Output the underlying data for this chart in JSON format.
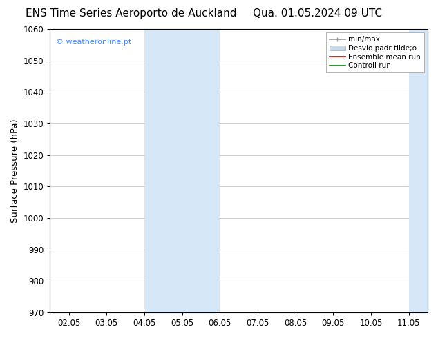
{
  "title_left": "ENS Time Series Aeroporto de Auckland",
  "title_right": "Qua. 01.05.2024 09 UTC",
  "ylabel": "Surface Pressure (hPa)",
  "ylim": [
    970,
    1060
  ],
  "yticks": [
    970,
    980,
    990,
    1000,
    1010,
    1020,
    1030,
    1040,
    1050,
    1060
  ],
  "xtick_labels": [
    "02.05",
    "03.05",
    "04.05",
    "05.05",
    "06.05",
    "07.05",
    "08.05",
    "09.05",
    "10.05",
    "11.05"
  ],
  "watermark": "© weatheronline.pt",
  "watermark_color": "#4488ff",
  "bg_color": "#ffffff",
  "plot_bg_color": "#ffffff",
  "shaded_color": "#d6e8f7",
  "legend_items": [
    {
      "label": "min/max"
    },
    {
      "label": "Desvio padr tilde;o"
    },
    {
      "label": "Ensemble mean run"
    },
    {
      "label": "Controll run"
    }
  ],
  "legend_line_colors": [
    "#999999",
    "#c8daea",
    "#cc0000",
    "#008800"
  ],
  "grid_color": "#c8c8c8",
  "axis_color": "#000000",
  "title_fontsize": 11,
  "tick_fontsize": 8.5,
  "ylabel_fontsize": 9.5
}
